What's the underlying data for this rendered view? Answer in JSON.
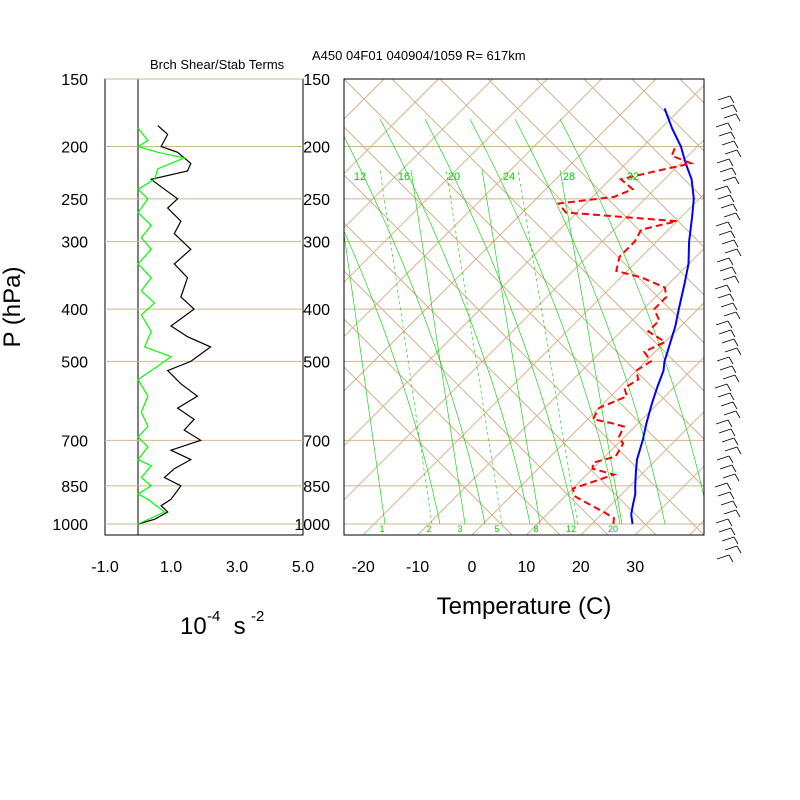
{
  "header": {
    "title": "A450 04F01 040904/1059 R= 617km",
    "left_panel_title": "Brch Shear/Stab Terms"
  },
  "axes": {
    "y_label": "P (hPa)",
    "pressure_ticks": [
      "150",
      "200",
      "250",
      "300",
      "400",
      "500",
      "700",
      "850",
      "1000"
    ],
    "left_x_ticks": [
      "-1.0",
      "1.0",
      "3.0",
      "5.0"
    ],
    "left_x_label_base": "10",
    "left_x_label_exp1": "-4",
    "left_x_label_mid": " s ",
    "left_x_label_exp2": "-2",
    "temp_ticks": [
      "-20",
      "-10",
      "0",
      "10",
      "20",
      "30"
    ],
    "temp_label": "Temperature (C)"
  },
  "colors": {
    "grid": "#d2b48c",
    "temperature": "#0000ff",
    "dewpoint": "#ff0000",
    "mixing_ratio": "#00cc00",
    "shear_term": "#000000",
    "stability_term": "#00ff00"
  },
  "chart_data": [
    {
      "type": "line",
      "title": "Brch Shear/Stab Terms",
      "xlabel": "10^-4 s^-2",
      "ylabel": "P (hPa)",
      "xlim": [
        -1.0,
        5.0
      ],
      "ylim": [
        1000,
        150
      ],
      "y_scale": "log",
      "series": [
        {
          "name": "",
          "color": "#000000",
          "points": [
            [
              0.0,
              1000
            ],
            [
              0.5,
              980
            ],
            [
              0.9,
              950
            ],
            [
              0.7,
              925
            ],
            [
              1.0,
              900
            ],
            [
              1.3,
              850
            ],
            [
              0.8,
              820
            ],
            [
              1.1,
              790
            ],
            [
              1.6,
              760
            ],
            [
              1.0,
              730
            ],
            [
              1.9,
              700
            ],
            [
              1.4,
              670
            ],
            [
              1.7,
              640
            ],
            [
              1.2,
              610
            ],
            [
              1.8,
              580
            ],
            [
              1.3,
              550
            ],
            [
              0.9,
              520
            ],
            [
              1.6,
              500
            ],
            [
              2.2,
              470
            ],
            [
              1.5,
              450
            ],
            [
              1.0,
              430
            ],
            [
              1.7,
              400
            ],
            [
              1.3,
              380
            ],
            [
              1.5,
              350
            ],
            [
              1.1,
              330
            ],
            [
              1.6,
              310
            ],
            [
              1.1,
              290
            ],
            [
              1.3,
              275
            ],
            [
              0.9,
              260
            ],
            [
              1.2,
              250
            ],
            [
              0.8,
              240
            ],
            [
              0.4,
              230
            ],
            [
              1.5,
              222
            ],
            [
              1.6,
              215
            ],
            [
              1.2,
              205
            ],
            [
              0.7,
              200
            ],
            [
              0.9,
              190
            ],
            [
              0.6,
              183
            ]
          ]
        },
        {
          "name": "",
          "color": "#00ff00",
          "points": [
            [
              0.0,
              1000
            ],
            [
              0.8,
              950
            ],
            [
              0.3,
              900
            ],
            [
              0.0,
              880
            ],
            [
              0.4,
              850
            ],
            [
              0.1,
              820
            ],
            [
              0.4,
              780
            ],
            [
              0.0,
              760
            ],
            [
              0.3,
              720
            ],
            [
              0.0,
              690
            ],
            [
              0.3,
              660
            ],
            [
              0.1,
              620
            ],
            [
              0.3,
              580
            ],
            [
              0.0,
              540
            ],
            [
              0.6,
              510
            ],
            [
              1.0,
              490
            ],
            [
              0.2,
              470
            ],
            [
              0.4,
              440
            ],
            [
              0.1,
              410
            ],
            [
              0.5,
              390
            ],
            [
              0.1,
              370
            ],
            [
              0.4,
              350
            ],
            [
              0.0,
              330
            ],
            [
              0.4,
              310
            ],
            [
              0.1,
              295
            ],
            [
              0.4,
              280
            ],
            [
              0.0,
              265
            ],
            [
              0.3,
              250
            ],
            [
              0.0,
              240
            ],
            [
              0.5,
              230
            ],
            [
              0.6,
              220
            ],
            [
              1.4,
              210
            ],
            [
              0.6,
              205
            ],
            [
              0.0,
              200
            ],
            [
              0.3,
              195
            ],
            [
              0.0,
              185
            ]
          ]
        }
      ]
    },
    {
      "type": "line",
      "title": "A450 04F01 040904/1059 R= 617km",
      "xlabel": "Temperature (C)",
      "ylabel": "P (hPa)",
      "xlim": [
        -24,
        44
      ],
      "ylim": [
        1000,
        150
      ],
      "y_scale": "log",
      "skew": "skew-T",
      "mixing_ratio_labels": [
        "12",
        "16",
        "20",
        "24",
        "28",
        "32"
      ],
      "mixing_ratio_bottom_labels": [
        "1",
        "2",
        "3",
        "5",
        "8",
        "12",
        "20"
      ],
      "series": [
        {
          "name": "",
          "color": "#0000ff",
          "points": [
            [
              29.5,
              1000
            ],
            [
              27.5,
              960
            ],
            [
              26,
              920
            ],
            [
              24.5,
              880
            ],
            [
              23,
              850
            ],
            [
              20.5,
              800
            ],
            [
              18.5,
              760
            ],
            [
              16,
              700
            ],
            [
              13.5,
              650
            ],
            [
              11,
              600
            ],
            [
              9,
              560
            ],
            [
              7,
              520
            ],
            [
              5.5,
              500
            ],
            [
              3,
              460
            ],
            [
              1,
              430
            ],
            [
              -1.5,
              400
            ],
            [
              -5,
              360
            ],
            [
              -8,
              330
            ],
            [
              -12,
              300
            ],
            [
              -16,
              270
            ],
            [
              -19,
              250
            ],
            [
              -23,
              230
            ],
            [
              -27,
              215
            ],
            [
              -31,
              200
            ],
            [
              -36,
              185
            ],
            [
              -41,
              170
            ]
          ]
        },
        {
          "name": "",
          "color": "#ff0000",
          "points": [
            [
              26,
              1000
            ],
            [
              25,
              975
            ],
            [
              22,
              950
            ],
            [
              18,
              920
            ],
            [
              14,
              890
            ],
            [
              12,
              860
            ],
            [
              15,
              830
            ],
            [
              17,
              810
            ],
            [
              12,
              790
            ],
            [
              11,
              770
            ],
            [
              14,
              750
            ],
            [
              13,
              710
            ],
            [
              11,
              690
            ],
            [
              10,
              660
            ],
            [
              7,
              650
            ],
            [
              3,
              640
            ],
            [
              2,
              610
            ],
            [
              5,
              580
            ],
            [
              3,
              560
            ],
            [
              4,
              540
            ],
            [
              2,
              520
            ],
            [
              3,
              500
            ],
            [
              0,
              480
            ],
            [
              2,
              460
            ],
            [
              -3,
              440
            ],
            [
              -3,
              420
            ],
            [
              -6,
              400
            ],
            [
              -6,
              380
            ],
            [
              -8,
              365
            ],
            [
              -14,
              350
            ],
            [
              -20,
              340
            ],
            [
              -22,
              320
            ],
            [
              -22,
              300
            ],
            [
              -23,
              285
            ],
            [
              -18,
              275
            ],
            [
              -40,
              265
            ],
            [
              -43,
              255
            ],
            [
              -34,
              248
            ],
            [
              -32,
              240
            ],
            [
              -36,
              230
            ],
            [
              -31,
              222
            ],
            [
              -26,
              215
            ],
            [
              -31,
              208
            ],
            [
              -32,
              200
            ]
          ]
        }
      ]
    }
  ]
}
